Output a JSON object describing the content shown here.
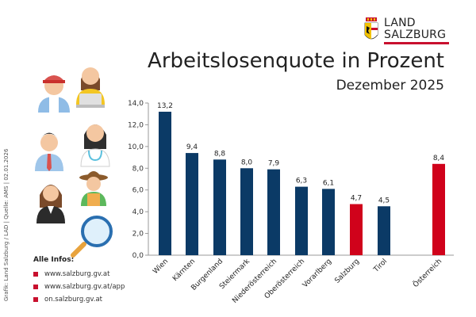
{
  "brand": {
    "logo_line1": "LAND",
    "logo_line2": "SALZBURG",
    "accent_color": "#c8102e"
  },
  "side_credit": "Grafik: Land Salzburg / LAD | Quelle: AMS | 02.01.2026",
  "info": {
    "heading": "Alle Infos:",
    "links": [
      "www.salzburg.gv.at",
      "www.salzburg.gv.at/app",
      "on.salzburg.gv.at"
    ]
  },
  "illustration_icons": [
    "worker-with-cap-icon",
    "woman-with-laptop-icon",
    "businessman-icon",
    "doctor-icon",
    "businesswoman-icon",
    "farmer-icon",
    "magnifying-glass-icon"
  ],
  "chart_data": {
    "type": "bar",
    "title": "Arbeitslosenquote in Prozent",
    "subtitle": "Dezember 2025",
    "categories": [
      "Wien",
      "Kärnten",
      "Burgenland",
      "Steiermark",
      "Niederösterreich",
      "Oberösterreich",
      "Vorarlberg",
      "Salzburg",
      "Tirol",
      "Österreich"
    ],
    "values": [
      13.2,
      9.4,
      8.8,
      8.0,
      7.9,
      6.3,
      6.1,
      4.7,
      4.5,
      8.4
    ],
    "value_labels": [
      "13,2",
      "9,4",
      "8,8",
      "8,0",
      "7,9",
      "6,3",
      "6,1",
      "4,7",
      "4,5",
      "8,4"
    ],
    "highlight": [
      "Salzburg",
      "Österreich"
    ],
    "colors": {
      "default": "#0b3a66",
      "highlight": "#d0021b"
    },
    "ylim": [
      0,
      14
    ],
    "yticks": [
      "0,0",
      "2,0",
      "4,0",
      "6,0",
      "8,0",
      "10,0",
      "12,0",
      "14,0"
    ],
    "xlabel": "",
    "ylabel": "",
    "grid": false
  }
}
